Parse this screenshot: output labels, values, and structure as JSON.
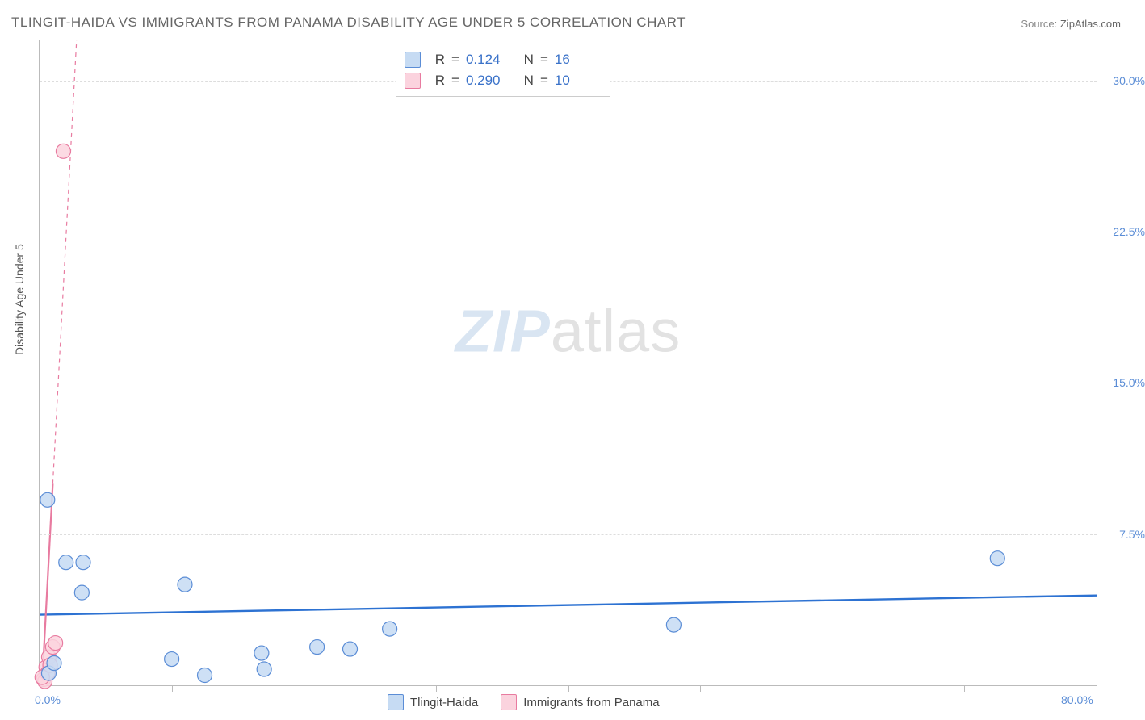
{
  "title": "TLINGIT-HAIDA VS IMMIGRANTS FROM PANAMA DISABILITY AGE UNDER 5 CORRELATION CHART",
  "source": {
    "label": "Source:",
    "value": "ZipAtlas.com"
  },
  "watermark": {
    "part1": "ZIP",
    "part2": "atlas"
  },
  "chart": {
    "type": "scatter",
    "y_axis_title": "Disability Age Under 5",
    "xlim": [
      0,
      80
    ],
    "ylim": [
      0,
      32
    ],
    "x_ticks_major": [
      0,
      10,
      20,
      30,
      40,
      50,
      60,
      70,
      80
    ],
    "x_tick_labels": {
      "0": "0.0%",
      "80": "80.0%"
    },
    "y_ticks": [
      7.5,
      15.0,
      22.5,
      30.0
    ],
    "y_tick_labels": [
      "7.5%",
      "15.0%",
      "22.5%",
      "30.0%"
    ],
    "grid_color": "#dddddd",
    "axis_color": "#bbbbbb",
    "tick_label_color": "#5b8dd6",
    "background_color": "#ffffff",
    "marker_radius": 9,
    "marker_stroke_width": 1.2,
    "series": [
      {
        "name": "Tlingit-Haida",
        "fill": "#c6dbf3",
        "stroke": "#5b8dd6",
        "trend": {
          "slope": 0.012,
          "intercept": 3.5,
          "width": 2.4,
          "color": "#2d72d2",
          "dash": "none"
        },
        "stats": {
          "R": "0.124",
          "N": "16"
        },
        "points": [
          [
            0.6,
            9.2
          ],
          [
            2.0,
            6.1
          ],
          [
            3.3,
            6.1
          ],
          [
            3.2,
            4.6
          ],
          [
            11.0,
            5.0
          ],
          [
            10.0,
            1.3
          ],
          [
            12.5,
            0.5
          ],
          [
            16.8,
            1.6
          ],
          [
            17.0,
            0.8
          ],
          [
            21.0,
            1.9
          ],
          [
            23.5,
            1.8
          ],
          [
            26.5,
            2.8
          ],
          [
            48.0,
            3.0
          ],
          [
            72.5,
            6.3
          ],
          [
            0.7,
            0.6
          ],
          [
            1.1,
            1.1
          ]
        ]
      },
      {
        "name": "Immigrants from Panama",
        "fill": "#fbd3de",
        "stroke": "#e87ba0",
        "trend": {
          "slope_to": [
            2.8,
            32
          ],
          "from": [
            0.2,
            0.2
          ],
          "width": 1.2,
          "color": "#e87ba0",
          "dash_solid_limit": 10.0
        },
        "stats": {
          "R": "0.290",
          "N": "10"
        },
        "points": [
          [
            1.8,
            26.5
          ],
          [
            0.3,
            0.3
          ],
          [
            0.5,
            0.9
          ],
          [
            0.7,
            1.4
          ],
          [
            0.4,
            0.2
          ],
          [
            1.0,
            1.9
          ],
          [
            0.6,
            0.6
          ],
          [
            0.8,
            1.0
          ],
          [
            1.2,
            2.1
          ],
          [
            0.2,
            0.4
          ]
        ]
      }
    ],
    "legend_top": {
      "border_color": "#cccccc",
      "rows": [
        {
          "swatch_fill": "#c6dbf3",
          "swatch_stroke": "#5b8dd6",
          "R": "0.124",
          "N": "16"
        },
        {
          "swatch_fill": "#fbd3de",
          "swatch_stroke": "#e87ba0",
          "R": "0.290",
          "N": "10"
        }
      ],
      "labels": {
        "R": "R",
        "eq": "=",
        "N": "N"
      }
    },
    "legend_bottom": [
      {
        "swatch_fill": "#c6dbf3",
        "swatch_stroke": "#5b8dd6",
        "label": "Tlingit-Haida"
      },
      {
        "swatch_fill": "#fbd3de",
        "swatch_stroke": "#e87ba0",
        "label": "Immigrants from Panama"
      }
    ]
  }
}
